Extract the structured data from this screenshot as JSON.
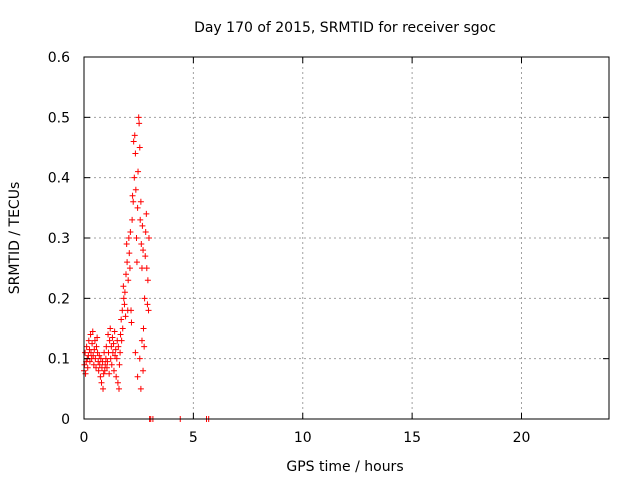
{
  "chart_data": {
    "type": "scatter",
    "title": "Day 170 of 2015, SRMTID for receiver sgoc",
    "xlabel": "GPS time / hours",
    "ylabel": "SRMTID / TECUs",
    "xlim": [
      0,
      24
    ],
    "ylim": [
      0,
      0.6
    ],
    "xticks": [
      0,
      5,
      10,
      15,
      20
    ],
    "xtick_labels": [
      "0",
      "5",
      "10",
      "15",
      "20"
    ],
    "yticks": [
      0,
      0.1,
      0.2,
      0.3,
      0.4,
      0.5,
      0.6
    ],
    "ytick_labels": [
      "0",
      "0.1",
      "0.2",
      "0.3",
      "0.4",
      "0.5",
      "0.6"
    ],
    "grid": true,
    "marker": "+",
    "series": [
      {
        "name": "SRMTID",
        "color": "#ff0000",
        "points": [
          [
            0.0,
            0.08
          ],
          [
            0.02,
            0.09
          ],
          [
            0.05,
            0.11
          ],
          [
            0.07,
            0.075
          ],
          [
            0.1,
            0.095
          ],
          [
            0.12,
            0.12
          ],
          [
            0.15,
            0.1
          ],
          [
            0.17,
            0.085
          ],
          [
            0.2,
            0.105
          ],
          [
            0.22,
            0.13
          ],
          [
            0.25,
            0.115
          ],
          [
            0.27,
            0.095
          ],
          [
            0.3,
            0.14
          ],
          [
            0.32,
            0.11
          ],
          [
            0.35,
            0.1
          ],
          [
            0.37,
            0.125
          ],
          [
            0.4,
            0.145
          ],
          [
            0.42,
            0.105
          ],
          [
            0.45,
            0.09
          ],
          [
            0.47,
            0.115
          ],
          [
            0.5,
            0.13
          ],
          [
            0.52,
            0.1
          ],
          [
            0.55,
            0.085
          ],
          [
            0.57,
            0.12
          ],
          [
            0.6,
            0.135
          ],
          [
            0.62,
            0.11
          ],
          [
            0.65,
            0.095
          ],
          [
            0.67,
            0.08
          ],
          [
            0.7,
            0.105
          ],
          [
            0.72,
            0.09
          ],
          [
            0.75,
            0.07
          ],
          [
            0.77,
            0.1
          ],
          [
            0.8,
            0.06
          ],
          [
            0.82,
            0.085
          ],
          [
            0.85,
            0.095
          ],
          [
            0.87,
            0.05
          ],
          [
            0.9,
            0.075
          ],
          [
            0.92,
            0.11
          ],
          [
            0.95,
            0.08
          ],
          [
            0.97,
            0.09
          ],
          [
            1.0,
            0.1
          ],
          [
            1.02,
            0.12
          ],
          [
            1.05,
            0.085
          ],
          [
            1.07,
            0.095
          ],
          [
            1.1,
            0.14
          ],
          [
            1.12,
            0.11
          ],
          [
            1.15,
            0.075
          ],
          [
            1.17,
            0.13
          ],
          [
            1.2,
            0.15
          ],
          [
            1.22,
            0.1
          ],
          [
            1.25,
            0.12
          ],
          [
            1.27,
            0.09
          ],
          [
            1.3,
            0.135
          ],
          [
            1.32,
            0.11
          ],
          [
            1.35,
            0.125
          ],
          [
            1.37,
            0.08
          ],
          [
            1.4,
            0.145
          ],
          [
            1.42,
            0.105
          ],
          [
            1.45,
            0.115
          ],
          [
            1.47,
            0.07
          ],
          [
            1.5,
            0.1
          ],
          [
            1.52,
            0.13
          ],
          [
            1.55,
            0.06
          ],
          [
            1.57,
            0.12
          ],
          [
            1.6,
            0.05
          ],
          [
            1.62,
            0.09
          ],
          [
            1.65,
            0.11
          ],
          [
            1.67,
            0.14
          ],
          [
            1.7,
            0.165
          ],
          [
            1.72,
            0.13
          ],
          [
            1.75,
            0.18
          ],
          [
            1.77,
            0.15
          ],
          [
            1.8,
            0.22
          ],
          [
            1.82,
            0.2
          ],
          [
            1.85,
            0.19
          ],
          [
            1.87,
            0.21
          ],
          [
            1.9,
            0.17
          ],
          [
            1.92,
            0.24
          ],
          [
            1.95,
            0.29
          ],
          [
            1.97,
            0.26
          ],
          [
            2.0,
            0.18
          ],
          [
            2.02,
            0.23
          ],
          [
            2.05,
            0.3
          ],
          [
            2.07,
            0.275
          ],
          [
            2.1,
            0.25
          ],
          [
            2.12,
            0.31
          ],
          [
            2.15,
            0.18
          ],
          [
            2.17,
            0.16
          ],
          [
            2.2,
            0.33
          ],
          [
            2.22,
            0.37
          ],
          [
            2.25,
            0.36
          ],
          [
            2.27,
            0.46
          ],
          [
            2.3,
            0.4
          ],
          [
            2.32,
            0.47
          ],
          [
            2.35,
            0.44
          ],
          [
            2.37,
            0.38
          ],
          [
            2.4,
            0.3
          ],
          [
            2.42,
            0.26
          ],
          [
            2.45,
            0.35
          ],
          [
            2.47,
            0.41
          ],
          [
            2.5,
            0.5
          ],
          [
            2.52,
            0.49
          ],
          [
            2.55,
            0.45
          ],
          [
            2.57,
            0.33
          ],
          [
            2.6,
            0.36
          ],
          [
            2.62,
            0.29
          ],
          [
            2.65,
            0.25
          ],
          [
            2.67,
            0.32
          ],
          [
            2.7,
            0.28
          ],
          [
            2.72,
            0.15
          ],
          [
            2.75,
            0.12
          ],
          [
            2.77,
            0.2
          ],
          [
            2.8,
            0.27
          ],
          [
            2.82,
            0.31
          ],
          [
            2.85,
            0.34
          ],
          [
            2.87,
            0.25
          ],
          [
            2.9,
            0.19
          ],
          [
            2.92,
            0.23
          ],
          [
            2.95,
            0.18
          ],
          [
            2.97,
            0.3
          ],
          [
            2.55,
            0.1
          ],
          [
            2.6,
            0.05
          ],
          [
            2.65,
            0.13
          ],
          [
            2.7,
            0.08
          ],
          [
            2.35,
            0.11
          ],
          [
            2.45,
            0.07
          ],
          [
            3.0,
            0.0
          ],
          [
            3.05,
            0.0
          ],
          [
            3.15,
            0.0
          ],
          [
            4.4,
            0.0
          ],
          [
            5.6,
            0.0
          ],
          [
            5.7,
            0.0
          ]
        ]
      }
    ]
  }
}
